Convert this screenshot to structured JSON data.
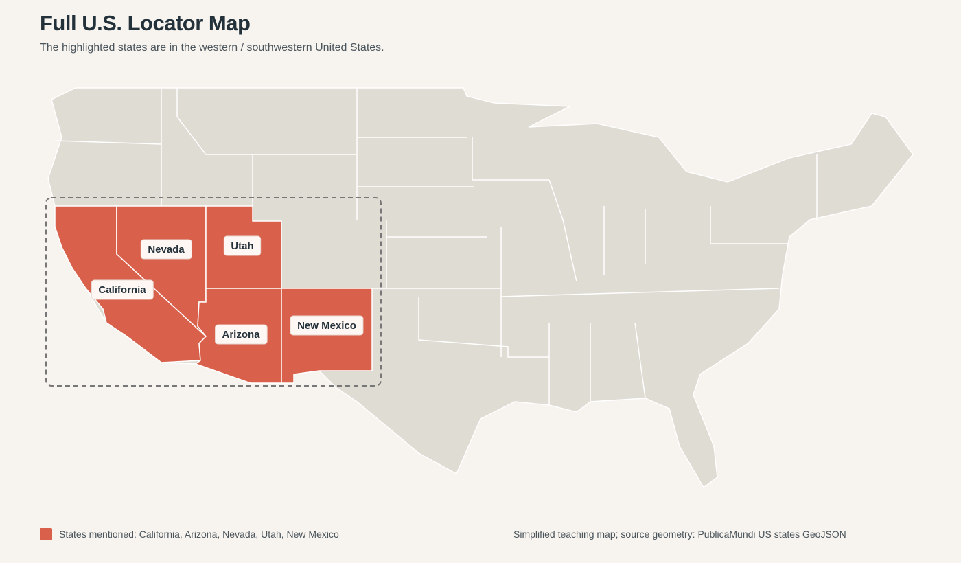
{
  "header": {
    "title": "Full U.S. Locator Map",
    "subtitle": "The highlighted states are in the western / southwestern United States."
  },
  "map": {
    "highlight_color": "#d9604a",
    "base_color": "#dfdcd4",
    "states": [
      {
        "name": "California"
      },
      {
        "name": "Nevada"
      },
      {
        "name": "Utah"
      },
      {
        "name": "Arizona"
      },
      {
        "name": "New Mexico"
      }
    ]
  },
  "footer": {
    "legend": "States mentioned: California, Arizona, Nevada, Utah, New Mexico",
    "source": "Simplified teaching map; source geometry: PublicaMundi US states GeoJSON"
  }
}
